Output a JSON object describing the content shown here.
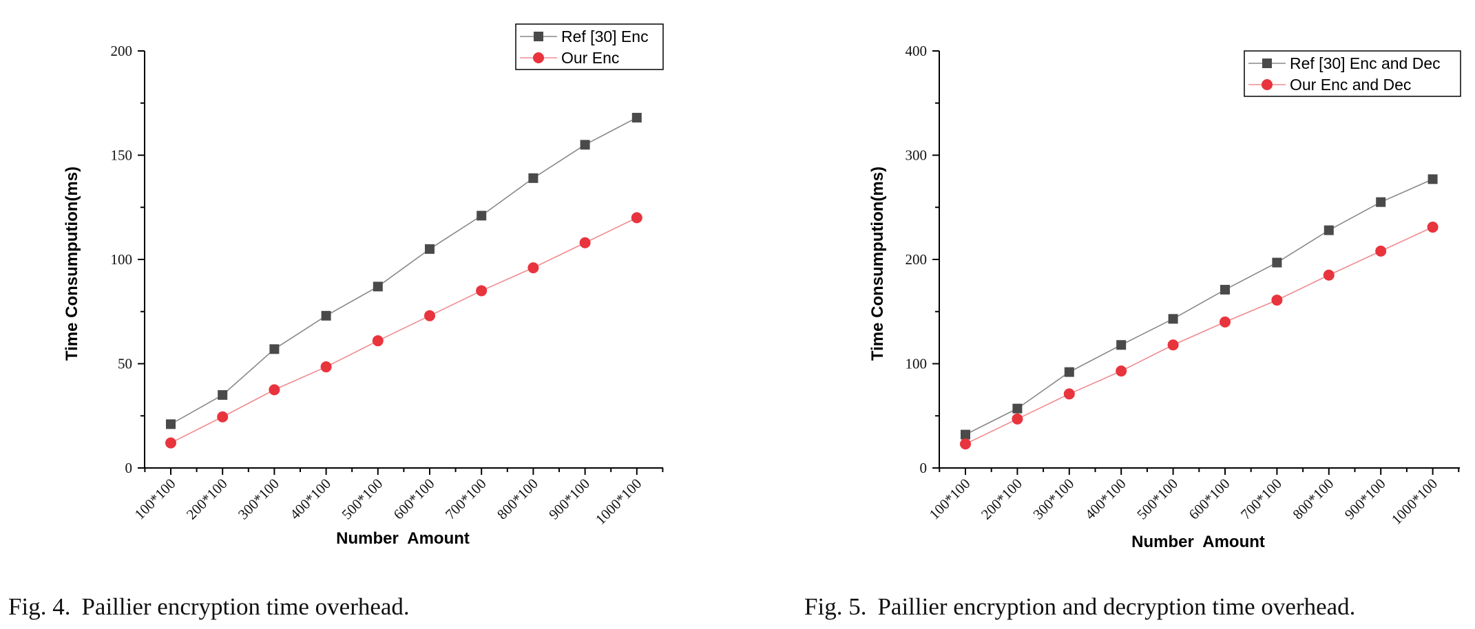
{
  "chart_data": [
    {
      "type": "line",
      "title": "",
      "xlabel": "Number  Amount",
      "ylabel": "Time Consumpution(ms)",
      "ylim": [
        0,
        200
      ],
      "yticks": [
        "0",
        "50",
        "100",
        "150",
        "200"
      ],
      "categories": [
        "100*100",
        "200*100",
        "300*100",
        "400*100",
        "500*100",
        "600*100",
        "700*100",
        "800*100",
        "900*100",
        "1000*100"
      ],
      "legend_position": "top-right",
      "grid": false,
      "series": [
        {
          "name": "Ref [30] Enc",
          "marker": "square",
          "color": "#4a4a4a",
          "line_color": "#888888",
          "values": [
            21,
            35,
            57,
            73,
            87,
            105,
            121,
            139,
            155,
            168
          ]
        },
        {
          "name": "Our Enc",
          "marker": "circle",
          "color": "#e8343d",
          "line_color": "#f08a8e",
          "values": [
            12,
            24.5,
            37.5,
            48.5,
            61,
            73,
            85,
            96,
            108,
            120
          ]
        }
      ]
    },
    {
      "type": "line",
      "title": "",
      "xlabel": "Number  Amount",
      "ylabel": "Time Consumpution(ms)",
      "ylim": [
        0,
        400
      ],
      "yticks": [
        "0",
        "100",
        "200",
        "300",
        "400"
      ],
      "categories": [
        "100*100",
        "200*100",
        "300*100",
        "400*100",
        "500*100",
        "600*100",
        "700*100",
        "800*100",
        "900*100",
        "1000*100"
      ],
      "legend_position": "top-right",
      "grid": false,
      "series": [
        {
          "name": "Ref [30] Enc and Dec",
          "marker": "square",
          "color": "#4a4a4a",
          "line_color": "#888888",
          "values": [
            32,
            57,
            92,
            118,
            143,
            171,
            197,
            228,
            255,
            277
          ]
        },
        {
          "name": "Our Enc and Dec",
          "marker": "circle",
          "color": "#e8343d",
          "line_color": "#f08a8e",
          "values": [
            23,
            47,
            71,
            93,
            118,
            140,
            161,
            185,
            208,
            231
          ]
        }
      ]
    }
  ],
  "captions": [
    {
      "label": "Fig. 4.",
      "text": "Paillier encryption time overhead."
    },
    {
      "label": "Fig. 5.",
      "text": "Paillier encryption and decryption time overhead."
    }
  ]
}
